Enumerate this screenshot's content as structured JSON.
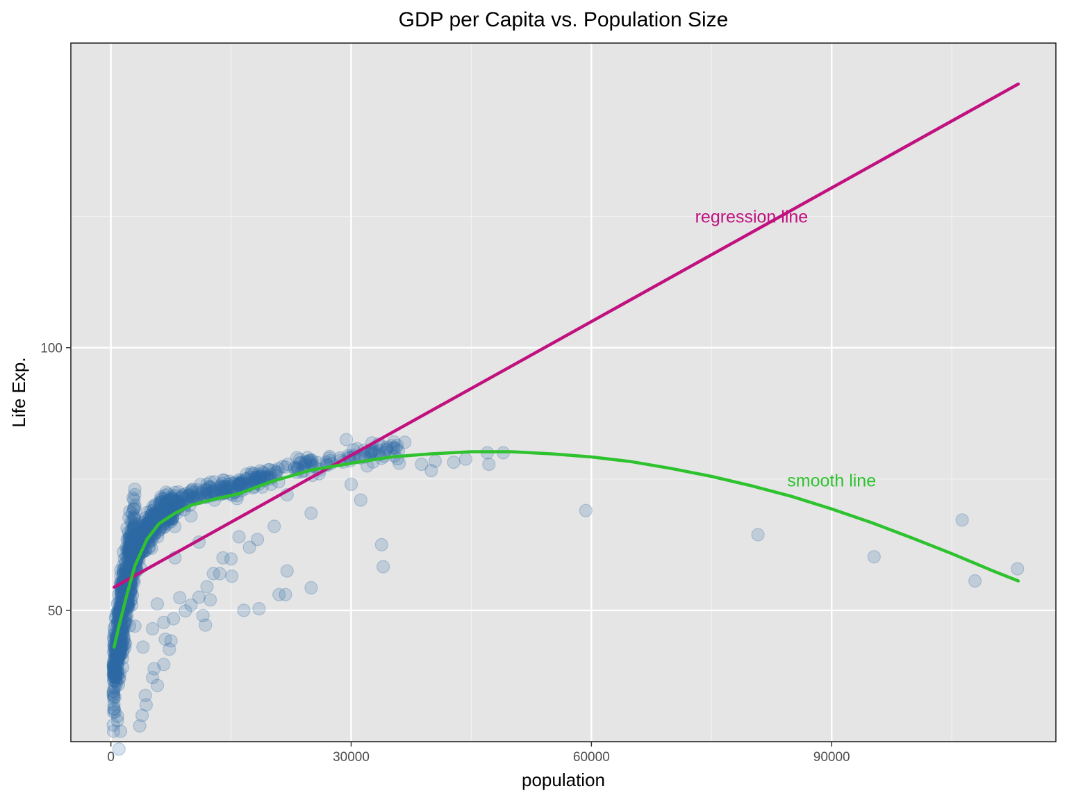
{
  "chart_data": {
    "type": "scatter",
    "title": "GDP per Capita vs. Population Size",
    "xlabel": "population",
    "ylabel": "Life Exp.",
    "xlim": [
      -5000,
      118000
    ],
    "ylim": [
      25,
      158
    ],
    "x_ticks": [
      0,
      30000,
      60000,
      90000
    ],
    "x_tick_labels": [
      "0",
      "30000",
      "60000",
      "90000"
    ],
    "y_ticks": [
      50,
      100
    ],
    "y_tick_labels": [
      "50",
      "100"
    ],
    "x_minor_ticks": [
      15000,
      45000,
      75000,
      105000
    ],
    "y_minor_ticks": [
      25,
      75,
      125
    ],
    "grid": true,
    "panel_background": "#e5e5e5",
    "point_color": "#2e6aa7",
    "point_opacity": 0.2,
    "series": [
      {
        "name": "",
        "values": [
          [
            59300,
            69.0
          ],
          [
            80800,
            64.4
          ],
          [
            95300,
            60.2
          ],
          [
            106300,
            67.2
          ],
          [
            107900,
            55.6
          ],
          [
            113200,
            57.9
          ],
          [
            49000,
            80.0
          ],
          [
            47000,
            80.0
          ],
          [
            47200,
            77.8
          ],
          [
            44300,
            78.8
          ],
          [
            42800,
            78.2
          ],
          [
            40500,
            78.4
          ],
          [
            40000,
            76.6
          ],
          [
            38800,
            77.8
          ],
          [
            36700,
            82.0
          ],
          [
            34400,
            80.7
          ],
          [
            33800,
            62.5
          ],
          [
            34000,
            58.3
          ],
          [
            31200,
            71.0
          ],
          [
            29400,
            82.5
          ],
          [
            28600,
            79.0
          ],
          [
            25000,
            68.5
          ],
          [
            25000,
            54.3
          ],
          [
            21800,
            53.0
          ],
          [
            21000,
            53.0
          ],
          [
            22000,
            57.5
          ],
          [
            16600,
            50.0
          ],
          [
            18500,
            50.3
          ],
          [
            20400,
            66.0
          ],
          [
            18300,
            63.5
          ],
          [
            17300,
            62.0
          ],
          [
            15000,
            59.8
          ],
          [
            15100,
            56.5
          ],
          [
            12800,
            57.0
          ],
          [
            13600,
            57.0
          ],
          [
            12000,
            54.5
          ],
          [
            12400,
            52.0
          ],
          [
            11000,
            52.5
          ],
          [
            11500,
            49.0
          ],
          [
            11800,
            47.2
          ],
          [
            10000,
            51.0
          ],
          [
            9300,
            49.9
          ],
          [
            8600,
            52.4
          ],
          [
            7800,
            48.4
          ],
          [
            6600,
            47.7
          ],
          [
            5800,
            51.2
          ],
          [
            5200,
            46.5
          ],
          [
            7500,
            44.2
          ],
          [
            7300,
            42.6
          ],
          [
            6800,
            44.5
          ],
          [
            6600,
            39.7
          ],
          [
            5400,
            38.9
          ],
          [
            5800,
            35.7
          ],
          [
            5200,
            37.2
          ],
          [
            4300,
            33.8
          ],
          [
            4400,
            32.0
          ],
          [
            3900,
            30.0
          ],
          [
            3600,
            28.0
          ],
          [
            1000,
            23.6
          ],
          [
            800,
            29.0
          ],
          [
            1200,
            27.0
          ],
          [
            2600,
            51.0
          ],
          [
            3000,
            47.0
          ],
          [
            4000,
            43.0
          ],
          [
            3200,
            58.0
          ],
          [
            4800,
            63.0
          ],
          [
            6000,
            67.0
          ],
          [
            9000,
            72.0
          ],
          [
            12000,
            74.0
          ],
          [
            20000,
            74.0
          ],
          [
            26000,
            76.0
          ],
          [
            32000,
            77.5
          ],
          [
            36000,
            78.0
          ],
          [
            14000,
            60.0
          ],
          [
            16000,
            64.0
          ],
          [
            22000,
            72.0
          ],
          [
            30000,
            74.0
          ],
          [
            10000,
            68.0
          ],
          [
            8000,
            60.0
          ],
          [
            11000,
            63.0
          ]
        ]
      }
    ],
    "lines": [
      {
        "label": "regression line",
        "color": "#c0117f",
        "x": [
          400,
          113300
        ],
        "y": [
          54.4,
          150.2
        ]
      },
      {
        "label": "smooth line",
        "color": "#2ec22e",
        "x": [
          400,
          1000,
          2000,
          3000,
          4500,
          6000,
          8000,
          10000,
          13000,
          16000,
          20000,
          25000,
          30000,
          35000,
          40000,
          45000,
          50000,
          55000,
          60000,
          65000,
          70000,
          75000,
          80000,
          85000,
          90000,
          95000,
          100000,
          105000,
          110000,
          113300
        ],
        "y": [
          43.0,
          47.0,
          53.0,
          58.5,
          63.5,
          66.5,
          68.5,
          70.0,
          71.2,
          72.2,
          74.5,
          76.7,
          78.0,
          79.2,
          79.8,
          80.2,
          80.2,
          79.8,
          79.2,
          78.3,
          77.0,
          75.5,
          73.7,
          71.7,
          69.3,
          66.7,
          63.8,
          60.8,
          57.6,
          55.6
        ]
      }
    ],
    "annotations": [
      {
        "text": "regression line",
        "x": 80000,
        "y": 125,
        "color": "#c0117f"
      },
      {
        "text": "smooth line",
        "x": 90000,
        "y": 74.8,
        "color": "#2ec22e"
      }
    ]
  }
}
